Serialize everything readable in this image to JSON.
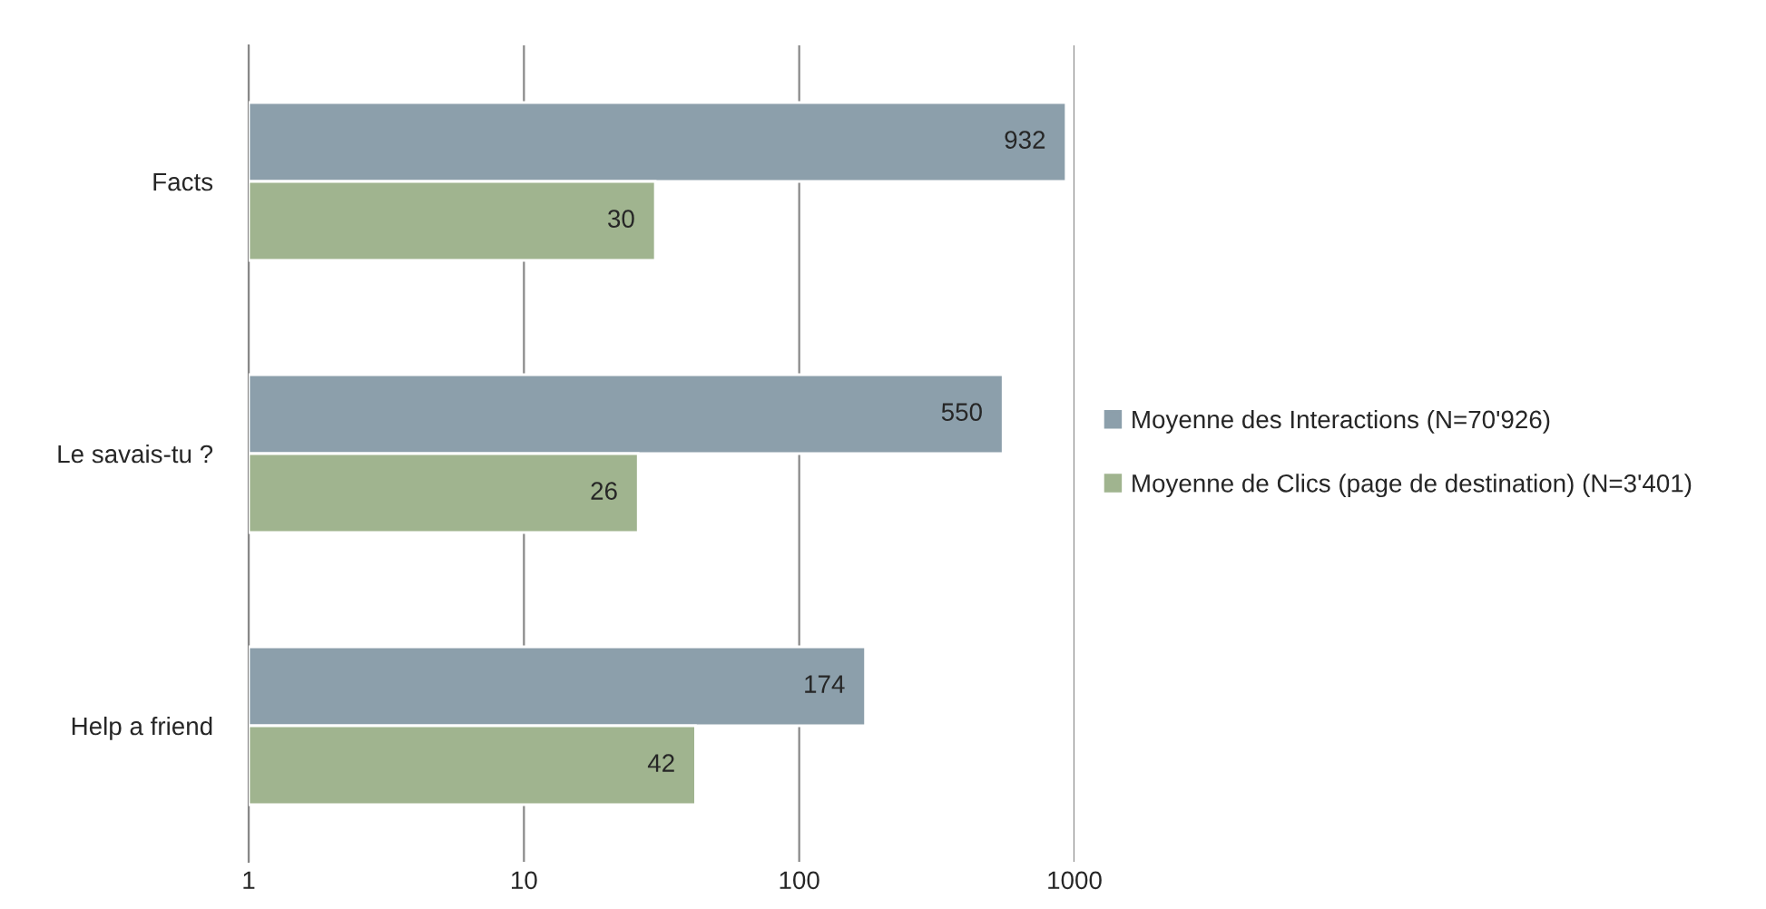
{
  "chart_data": {
    "type": "bar",
    "orientation": "horizontal",
    "categories": [
      "Facts",
      "Le savais-tu ?",
      "Help a friend"
    ],
    "series": [
      {
        "name": "Moyenne des Interactions (N=70'926)",
        "color": "#8c9fab",
        "values": [
          932,
          550,
          174
        ]
      },
      {
        "name": "Moyenne de Clics (page de destination) (N=3'401)",
        "color": "#a0b48f",
        "values": [
          30,
          26,
          42
        ]
      }
    ],
    "log": "x",
    "xlim": [
      1,
      1000
    ],
    "xticks": [
      1,
      10,
      100,
      1000
    ],
    "grid": "x",
    "legend": "right",
    "data_labels": true
  }
}
